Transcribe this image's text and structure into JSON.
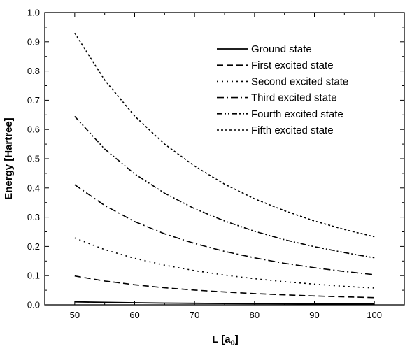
{
  "chart_data": {
    "type": "line",
    "title": "",
    "xlabel_main": "L [a",
    "xlabel_sub": "0",
    "xlabel_close": "]",
    "ylabel": "Energy [Hartree]",
    "xlim": [
      45,
      105
    ],
    "ylim": [
      0.0,
      1.0
    ],
    "xticks": [
      50,
      60,
      70,
      80,
      90,
      100
    ],
    "yticks": [
      "0.0",
      "0.1",
      "0.2",
      "0.3",
      "0.4",
      "0.5",
      "0.6",
      "0.7",
      "0.8",
      "0.9",
      "1.0"
    ],
    "legend_position": "top-right",
    "grid": false,
    "x": [
      50,
      55,
      60,
      65,
      70,
      75,
      80,
      85,
      90,
      95,
      100
    ],
    "series": [
      {
        "name": "Ground state",
        "dash": "solid",
        "values": [
          0.0103,
          0.0085,
          0.0072,
          0.0061,
          0.0053,
          0.0046,
          0.004,
          0.0036,
          0.0032,
          0.0029,
          0.0026
        ]
      },
      {
        "name": "First excited state",
        "dash": "dash",
        "values": [
          0.0987,
          0.0816,
          0.0686,
          0.0584,
          0.0504,
          0.0439,
          0.0386,
          0.0342,
          0.0305,
          0.0273,
          0.0247
        ]
      },
      {
        "name": "Second excited state",
        "dash": "dot",
        "values": [
          0.229,
          0.189,
          0.159,
          0.136,
          0.117,
          0.102,
          0.0895,
          0.0793,
          0.0707,
          0.0635,
          0.0573
        ]
      },
      {
        "name": "Third excited state",
        "dash": "dashdot",
        "values": [
          0.411,
          0.34,
          0.285,
          0.243,
          0.21,
          0.183,
          0.161,
          0.142,
          0.127,
          0.114,
          0.103
        ]
      },
      {
        "name": "Fourth excited state",
        "dash": "dashdotdot",
        "values": [
          0.645,
          0.533,
          0.448,
          0.382,
          0.329,
          0.287,
          0.252,
          0.223,
          0.199,
          0.179,
          0.161
        ]
      },
      {
        "name": "Fifth excited state",
        "dash": "shortdash",
        "values": [
          0.93,
          0.769,
          0.646,
          0.55,
          0.475,
          0.413,
          0.363,
          0.322,
          0.287,
          0.258,
          0.233
        ]
      }
    ]
  }
}
